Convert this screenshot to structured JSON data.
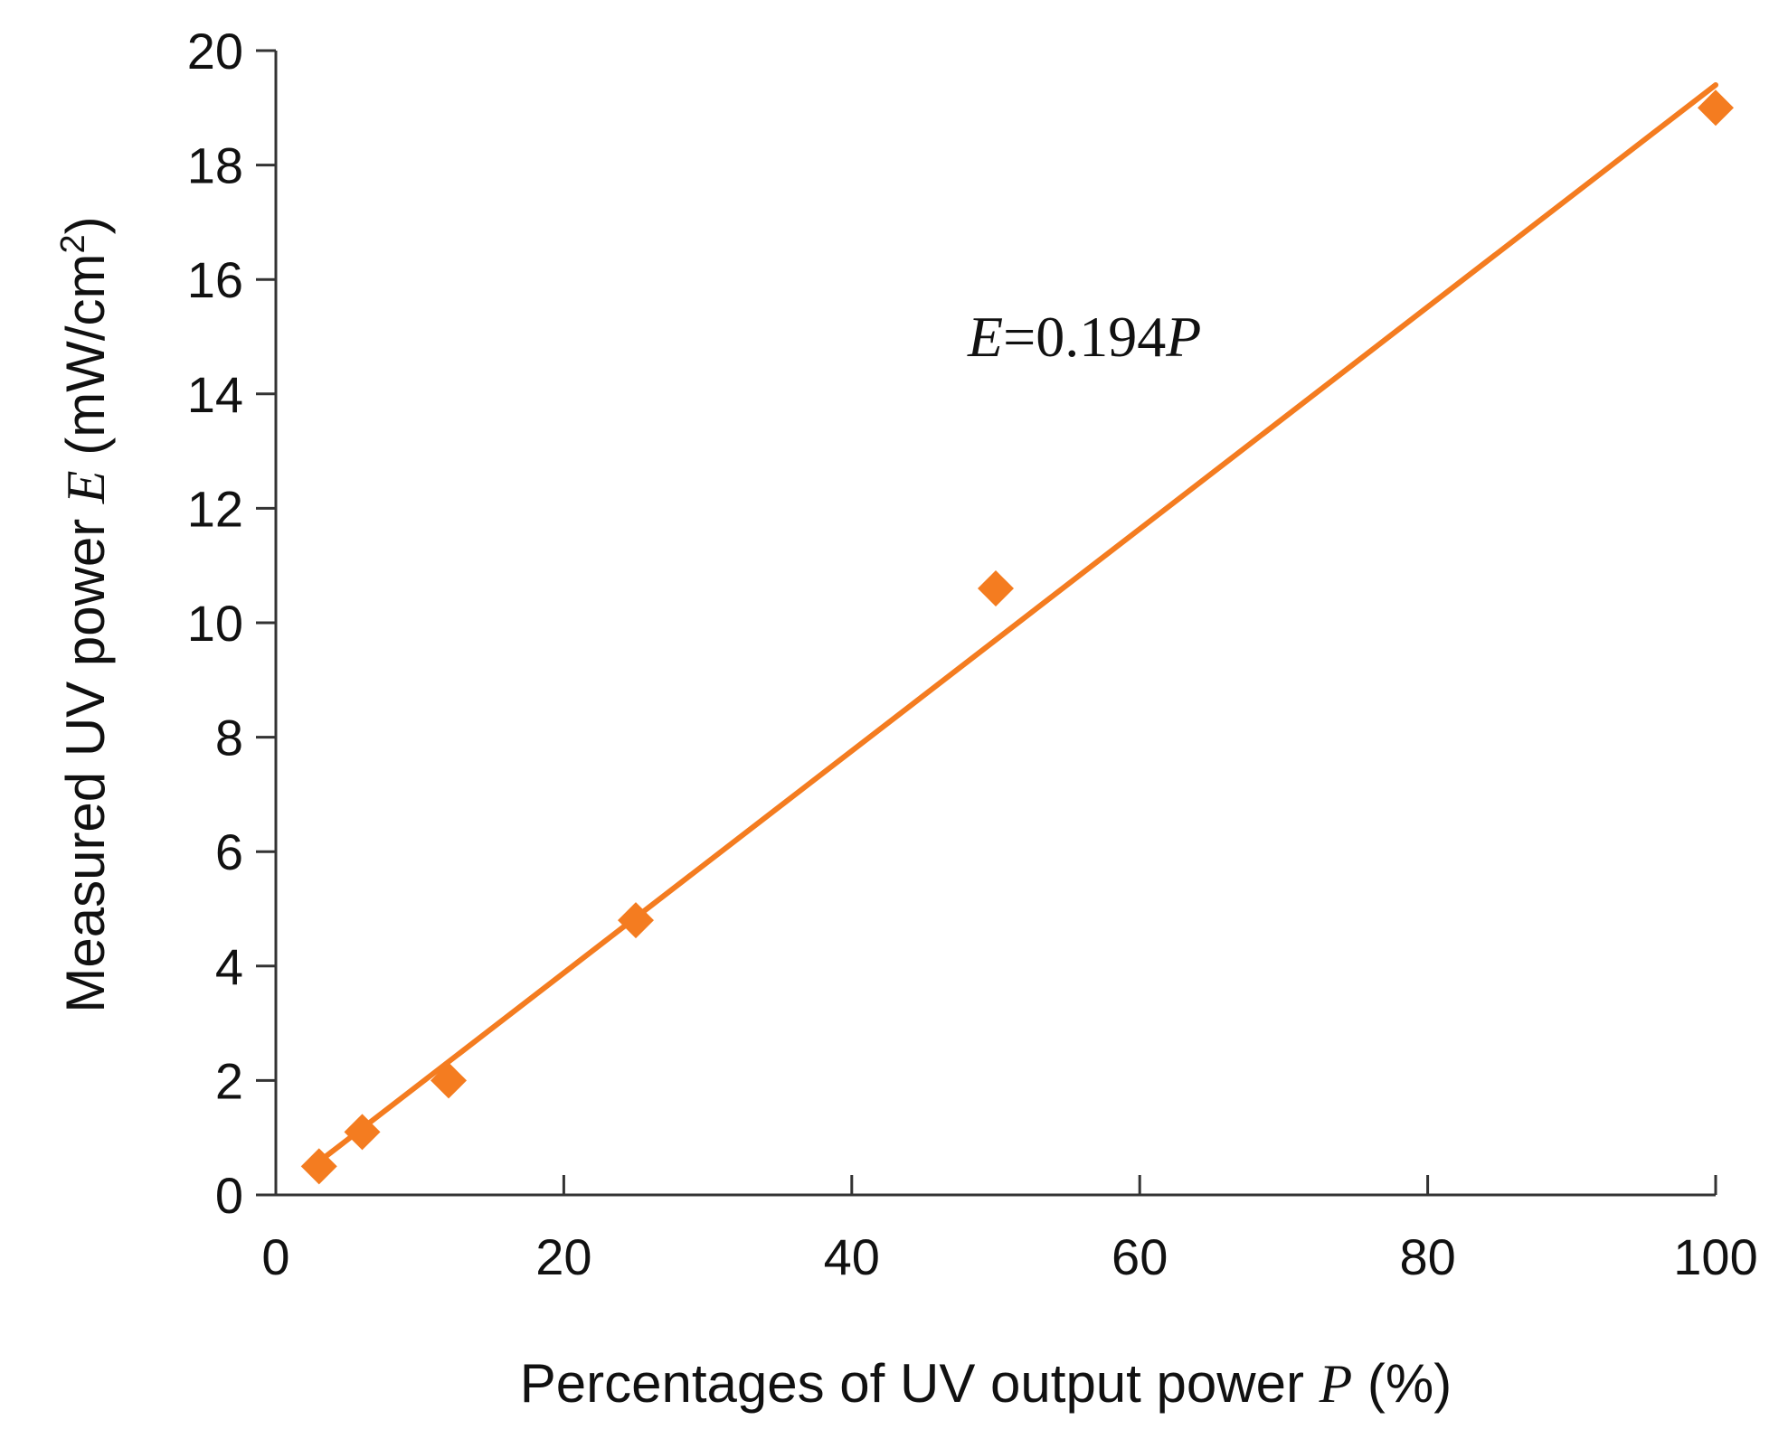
{
  "chart_data": {
    "type": "scatter",
    "x": [
      3,
      6,
      12,
      25,
      50,
      100
    ],
    "y": [
      0.5,
      1.1,
      2.0,
      4.8,
      10.6,
      19.0
    ],
    "series": [
      {
        "name": "Measured",
        "x": [
          3,
          6,
          12,
          25,
          50,
          100
        ],
        "values": [
          0.5,
          1.1,
          2.0,
          4.8,
          10.6,
          19.0
        ],
        "marker": "diamond"
      }
    ],
    "fit": {
      "type": "linear",
      "slope": 0.194,
      "intercept": 0,
      "x_range": [
        3,
        100
      ]
    },
    "annotation": {
      "var": "E",
      "eq": "=0.194",
      "var2": "P"
    },
    "xlabel": {
      "prefix": "Percentages of UV output power ",
      "var": "P",
      "suffix": " (%)"
    },
    "ylabel": {
      "prefix": "Measured UV power ",
      "var": "E",
      "unit": " (mW/cm",
      "sup": "2",
      "close": ")"
    },
    "xlim": [
      0,
      100
    ],
    "ylim": [
      0,
      20
    ],
    "xticks": [
      0,
      20,
      40,
      60,
      80,
      100
    ],
    "yticks": [
      0,
      2,
      4,
      6,
      8,
      10,
      12,
      14,
      16,
      18,
      20
    ],
    "grid": false,
    "color": "#f47c20"
  }
}
